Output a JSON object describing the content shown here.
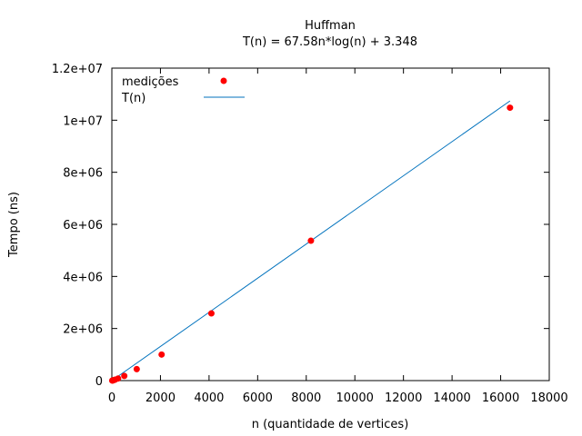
{
  "chart_data": {
    "type": "scatter",
    "title": "Huffman",
    "subtitle": "T(n) = 67.58n*log(n) + 3.348",
    "xlabel": "n (quantidade de vertices)",
    "ylabel": "Tempo (ns)",
    "xlim": [
      0,
      18000
    ],
    "ylim": [
      0,
      12000000
    ],
    "x_ticks": [
      0,
      2000,
      4000,
      6000,
      8000,
      10000,
      12000,
      14000,
      16000,
      18000
    ],
    "x_tick_labels": [
      "0",
      "2000",
      "4000",
      "6000",
      "8000",
      "10000",
      "12000",
      "14000",
      "16000",
      "18000"
    ],
    "y_ticks": [
      0,
      2000000,
      4000000,
      6000000,
      8000000,
      10000000,
      12000000
    ],
    "y_tick_labels": [
      "0",
      "2e+06",
      "4e+06",
      "6e+06",
      "8e+06",
      "1e+07",
      "1.2e+07"
    ],
    "grid": false,
    "legend_position": "top-left",
    "series": [
      {
        "name": "medições",
        "kind": "points",
        "color": "#ff0000",
        "x": [
          16,
          32,
          64,
          128,
          256,
          512,
          1024,
          2048,
          4096,
          8192,
          16384
        ],
        "y": [
          1500,
          4000,
          12000,
          35000,
          80000,
          180000,
          440000,
          1000000,
          2580000,
          5370000,
          10480000
        ]
      },
      {
        "name": "T(n)",
        "kind": "line",
        "color": "#0072bd",
        "formula": "67.58*n*log(n) + 3.348",
        "x": [
          0,
          16384
        ],
        "y": [
          0,
          10740000
        ]
      }
    ]
  }
}
